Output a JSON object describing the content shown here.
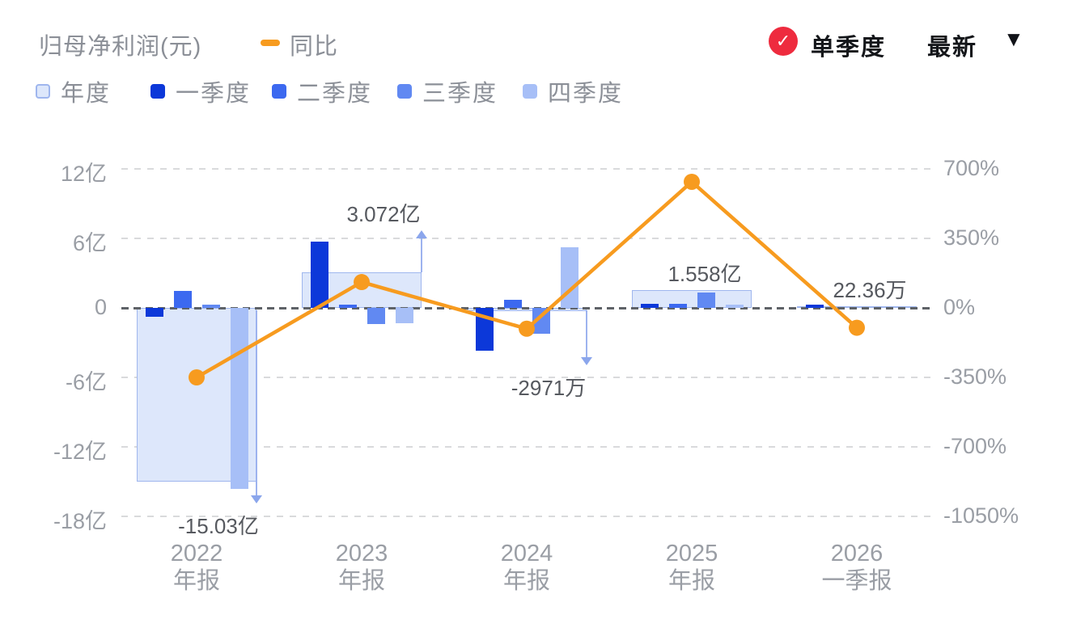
{
  "header": {
    "title": "归母净利润(元)",
    "line_series_label": "同比",
    "mode_primary": "单季度",
    "mode_secondary": "最新",
    "icons": {
      "check": "✓",
      "caret_down": "▼"
    },
    "colors": {
      "line": "#f79b1f",
      "badge": "#ee2b3e"
    }
  },
  "legend": [
    {
      "id": "annual",
      "label": "年度",
      "fill": "#dde7fb",
      "border": "#9fb6ee"
    },
    {
      "id": "q1",
      "label": "一季度",
      "fill": "#0c38d9",
      "border": "#0c38d9"
    },
    {
      "id": "q2",
      "label": "二季度",
      "fill": "#3c69f0",
      "border": "#3c69f0"
    },
    {
      "id": "q3",
      "label": "三季度",
      "fill": "#6189f2",
      "border": "#6189f2"
    },
    {
      "id": "q4",
      "label": "四季度",
      "fill": "#a7bff7",
      "border": "#a7bff7"
    }
  ],
  "chart_data": {
    "type": "bar",
    "subtype": "grouped-bars-with-yoy-line",
    "title": "归母净利润(元)",
    "categories": [
      [
        "2022",
        "年报"
      ],
      [
        "2023",
        "年报"
      ],
      [
        "2024",
        "年报"
      ],
      [
        "2025",
        "年报"
      ],
      [
        "2026",
        "一季报"
      ]
    ],
    "left_axis": {
      "label": "净利润",
      "unit": "亿",
      "ticks": [
        "12亿",
        "6亿",
        "0",
        "-6亿",
        "-12亿",
        "-18亿"
      ],
      "values": [
        12,
        6,
        0,
        -6,
        -12,
        -18
      ]
    },
    "right_axis": {
      "label": "同比",
      "unit": "%",
      "ticks": [
        "700%",
        "350%",
        "0%",
        "-350%",
        "-700%",
        "-1050%"
      ],
      "values": [
        700,
        350,
        0,
        -350,
        -700,
        -1050
      ]
    },
    "series": [
      {
        "name": "年度",
        "unit": "亿",
        "values": [
          -15.03,
          3.072,
          -0.2971,
          1.558,
          0.0022
        ]
      },
      {
        "name": "一季度",
        "unit": "亿",
        "values": [
          -0.8,
          5.7,
          -3.7,
          0.35,
          0.0022
        ]
      },
      {
        "name": "二季度",
        "unit": "亿",
        "values": [
          1.5,
          0.3,
          0.7,
          0.35,
          null
        ]
      },
      {
        "name": "三季度",
        "unit": "亿",
        "values": [
          0.3,
          -1.4,
          -2.2,
          1.35,
          null
        ]
      },
      {
        "name": "四季度",
        "unit": "亿",
        "values": [
          -15.6,
          -1.3,
          5.2,
          0.25,
          null
        ]
      }
    ],
    "line_series": {
      "name": "同比",
      "unit": "%",
      "values": [
        -350,
        130,
        -105,
        635,
        -100
      ]
    },
    "annotations": [
      {
        "category_index": 0,
        "text": "-15.03亿",
        "direction": "down",
        "arrow": true
      },
      {
        "category_index": 1,
        "text": "3.072亿",
        "direction": "up",
        "arrow": true
      },
      {
        "category_index": 2,
        "text": "-2971万",
        "direction": "down",
        "arrow": true
      },
      {
        "category_index": 3,
        "text": "1.558亿",
        "direction": "up",
        "arrow": false
      },
      {
        "category_index": 4,
        "text": "22.36万",
        "direction": "up",
        "arrow": false
      }
    ],
    "grid": "horizontal dashed",
    "legend_position": "top-left"
  }
}
